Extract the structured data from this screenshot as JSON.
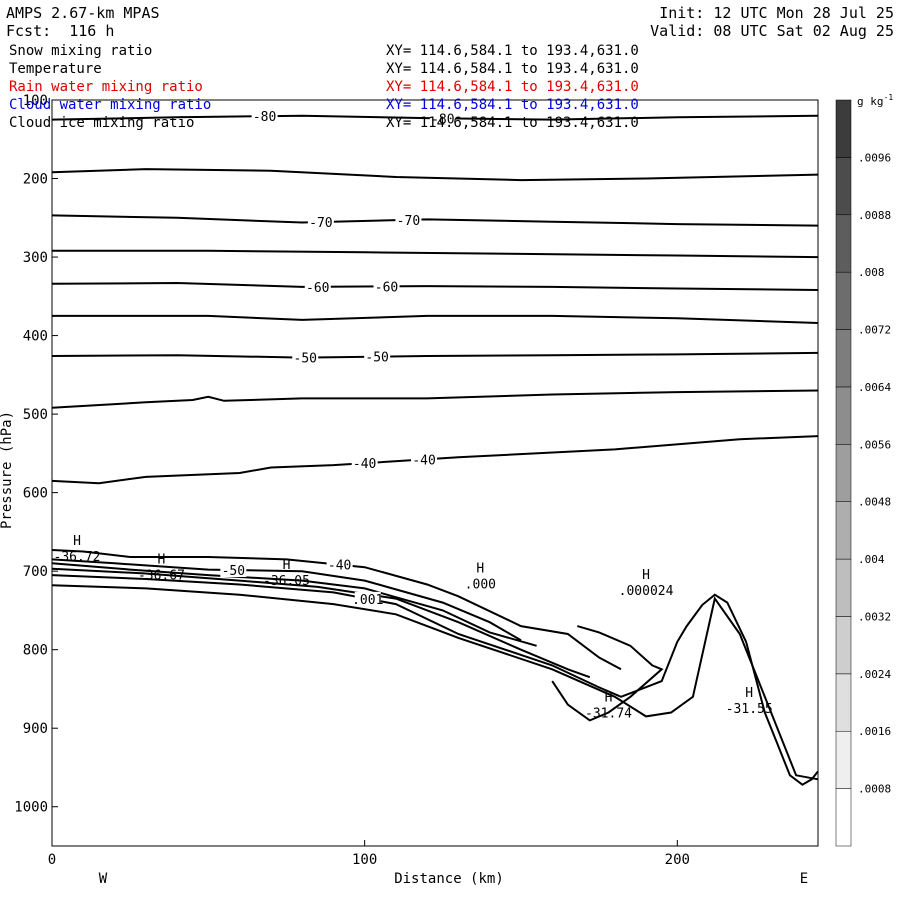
{
  "header": {
    "model": "AMPS 2.67-km MPAS",
    "forecast": "Fcst:  116 h",
    "init": "Init: 12 UTC Mon 28 Jul 25",
    "valid": "Valid: 08 UTC Sat 02 Aug 25"
  },
  "fields": [
    {
      "name": "Snow mixing ratio",
      "range": "XY= 114.6,584.1 to 193.4,631.0",
      "color": "#000000"
    },
    {
      "name": "Temperature",
      "range": "XY= 114.6,584.1 to 193.4,631.0",
      "color": "#000000"
    },
    {
      "name": "Rain water mixing ratio",
      "range": "XY= 114.6,584.1 to 193.4,631.0",
      "color": "#e00000"
    },
    {
      "name": "Cloud water mixing ratio",
      "range": "XY= 114.6,584.1 to 193.4,631.0",
      "color": "#0000e0"
    },
    {
      "name": "Cloud ice mixing ratio",
      "range": "XY= 114.6,584.1 to 193.4,631.0",
      "color": "#000000"
    }
  ],
  "chart_data": {
    "type": "contour cross-section",
    "xlabel": "Distance (km)",
    "ylabel": "Pressure (hPa)",
    "xlim": [
      0,
      245
    ],
    "ylim": [
      1050,
      100
    ],
    "x_ticks": [
      0,
      100,
      200
    ],
    "y_ticks": [
      100,
      200,
      300,
      400,
      500,
      600,
      700,
      800,
      900,
      1000
    ],
    "left_end_label": "W",
    "right_end_label": "E",
    "colorbar": {
      "unit": "g kg",
      "unit_exponent": "-1",
      "ticks": [
        ".0008",
        ".0016",
        ".0024",
        ".0032",
        ".004",
        ".0048",
        ".0056",
        ".0064",
        ".0072",
        ".008",
        ".0088",
        ".0096"
      ],
      "levels": 13
    },
    "temperature_contours": [
      {
        "points": [
          [
            0,
            125
          ],
          [
            40,
            122
          ],
          [
            80,
            120
          ],
          [
            120,
            123
          ],
          [
            160,
            125
          ],
          [
            200,
            122
          ],
          [
            245,
            120
          ]
        ],
        "labels": [
          {
            "text": "-80",
            "x": 68
          },
          {
            "text": "-80",
            "x": 125
          }
        ]
      },
      {
        "points": [
          [
            0,
            192
          ],
          [
            30,
            188
          ],
          [
            70,
            190
          ],
          [
            110,
            198
          ],
          [
            150,
            202
          ],
          [
            190,
            200
          ],
          [
            245,
            195
          ]
        ],
        "labels": []
      },
      {
        "points": [
          [
            0,
            247
          ],
          [
            40,
            250
          ],
          [
            80,
            256
          ],
          [
            120,
            252
          ],
          [
            160,
            255
          ],
          [
            200,
            258
          ],
          [
            245,
            260
          ]
        ],
        "labels": [
          {
            "text": "-70",
            "x": 86
          },
          {
            "text": "-70",
            "x": 114
          }
        ]
      },
      {
        "points": [
          [
            0,
            292
          ],
          [
            50,
            292
          ],
          [
            100,
            294
          ],
          [
            150,
            296
          ],
          [
            200,
            298
          ],
          [
            245,
            300
          ]
        ],
        "labels": []
      },
      {
        "points": [
          [
            0,
            334
          ],
          [
            40,
            333
          ],
          [
            80,
            338
          ],
          [
            120,
            337
          ],
          [
            160,
            338
          ],
          [
            200,
            340
          ],
          [
            245,
            342
          ]
        ],
        "labels": [
          {
            "text": "-60",
            "x": 85
          },
          {
            "text": "-60",
            "x": 107
          }
        ]
      },
      {
        "points": [
          [
            0,
            375
          ],
          [
            50,
            375
          ],
          [
            80,
            380
          ],
          [
            120,
            375
          ],
          [
            160,
            375
          ],
          [
            200,
            378
          ],
          [
            245,
            384
          ]
        ],
        "labels": []
      },
      {
        "points": [
          [
            0,
            426
          ],
          [
            40,
            425
          ],
          [
            80,
            428
          ],
          [
            120,
            426
          ],
          [
            160,
            425
          ],
          [
            200,
            424
          ],
          [
            245,
            422
          ]
        ],
        "labels": [
          {
            "text": "-50",
            "x": 81
          },
          {
            "text": "-50",
            "x": 104
          }
        ]
      },
      {
        "points": [
          [
            0,
            492
          ],
          [
            30,
            485
          ],
          [
            45,
            482
          ],
          [
            50,
            478
          ],
          [
            55,
            483
          ],
          [
            80,
            480
          ],
          [
            120,
            480
          ],
          [
            160,
            475
          ],
          [
            200,
            472
          ],
          [
            245,
            470
          ]
        ],
        "labels": []
      },
      {
        "points": [
          [
            0,
            585
          ],
          [
            15,
            588
          ],
          [
            30,
            580
          ],
          [
            60,
            575
          ],
          [
            70,
            568
          ],
          [
            90,
            565
          ],
          [
            130,
            555
          ],
          [
            180,
            545
          ],
          [
            220,
            532
          ],
          [
            245,
            528
          ]
        ],
        "labels": [
          {
            "text": "-40",
            "x": 100
          },
          {
            "text": "-40",
            "x": 119
          }
        ]
      }
    ],
    "surface_contours": [
      {
        "points": [
          [
            0,
            673
          ],
          [
            10,
            675
          ],
          [
            25,
            682
          ],
          [
            50,
            682
          ],
          [
            75,
            685
          ],
          [
            100,
            695
          ],
          [
            120,
            717
          ],
          [
            130,
            732
          ],
          [
            150,
            770
          ],
          [
            165,
            780
          ],
          [
            175,
            810
          ],
          [
            182,
            825
          ]
        ],
        "labels": [
          {
            "text": "-40",
            "x": 92
          }
        ]
      },
      {
        "points": [
          [
            0,
            685
          ],
          [
            20,
            690
          ],
          [
            50,
            698
          ],
          [
            80,
            700
          ],
          [
            100,
            712
          ],
          [
            125,
            740
          ],
          [
            140,
            765
          ],
          [
            150,
            788
          ]
        ],
        "labels": [
          {
            "text": "-50",
            "x": 58
          }
        ]
      },
      {
        "points": [
          [
            0,
            690
          ],
          [
            25,
            698
          ],
          [
            50,
            705
          ],
          [
            80,
            712
          ],
          [
            100,
            722
          ],
          [
            125,
            750
          ],
          [
            140,
            778
          ],
          [
            155,
            795
          ]
        ],
        "labels": []
      },
      {
        "points": [
          [
            0,
            697
          ],
          [
            30,
            703
          ],
          [
            60,
            712
          ],
          [
            85,
            720
          ],
          [
            110,
            735
          ],
          [
            130,
            765
          ],
          [
            150,
            800
          ],
          [
            165,
            825
          ],
          [
            172,
            835
          ]
        ],
        "labels": []
      },
      {
        "points": [
          [
            0,
            705
          ],
          [
            30,
            710
          ],
          [
            60,
            717
          ],
          [
            90,
            727
          ],
          [
            110,
            742
          ],
          [
            130,
            780
          ],
          [
            160,
            820
          ],
          [
            175,
            848
          ],
          [
            182,
            860
          ],
          [
            195,
            840
          ],
          [
            200,
            790
          ],
          [
            203,
            770
          ],
          [
            208,
            743
          ],
          [
            212,
            730
          ],
          [
            216,
            740
          ],
          [
            222,
            790
          ],
          [
            228,
            880
          ],
          [
            232,
            920
          ],
          [
            236,
            960
          ],
          [
            240,
            972
          ],
          [
            243,
            965
          ],
          [
            245,
            955
          ]
        ],
        "labels": [
          {
            "text": ".001",
            "x": 101
          }
        ]
      },
      {
        "points": [
          [
            0,
            718
          ],
          [
            30,
            722
          ],
          [
            60,
            730
          ],
          [
            90,
            742
          ],
          [
            110,
            755
          ],
          [
            130,
            785
          ],
          [
            160,
            825
          ],
          [
            180,
            860
          ],
          [
            190,
            885
          ],
          [
            198,
            880
          ],
          [
            205,
            860
          ],
          [
            212,
            735
          ],
          [
            220,
            780
          ],
          [
            230,
            880
          ],
          [
            238,
            960
          ],
          [
            245,
            965
          ]
        ],
        "labels": []
      },
      {
        "points": [
          [
            168,
            770
          ],
          [
            175,
            778
          ],
          [
            185,
            795
          ],
          [
            192,
            820
          ],
          [
            195,
            825
          ],
          [
            185,
            860
          ],
          [
            178,
            880
          ],
          [
            172,
            890
          ],
          [
            165,
            870
          ],
          [
            160,
            840
          ]
        ],
        "labels": []
      }
    ],
    "extrema": [
      {
        "marker": "H",
        "value": "-36.72",
        "x": 8,
        "p": 667
      },
      {
        "marker": "H",
        "value": "-36.67",
        "x": 35,
        "p": 690
      },
      {
        "marker": "H",
        "value": "-36.05",
        "x": 75,
        "p": 697
      },
      {
        "marker": "H",
        "value": ".000",
        "x": 137,
        "p": 702
      },
      {
        "marker": "H",
        "value": ".000024",
        "x": 190,
        "p": 710
      },
      {
        "marker": "H",
        "value": "-31.74",
        "x": 178,
        "p": 866
      },
      {
        "marker": "H",
        "value": "-31.55",
        "x": 223,
        "p": 860
      }
    ]
  }
}
